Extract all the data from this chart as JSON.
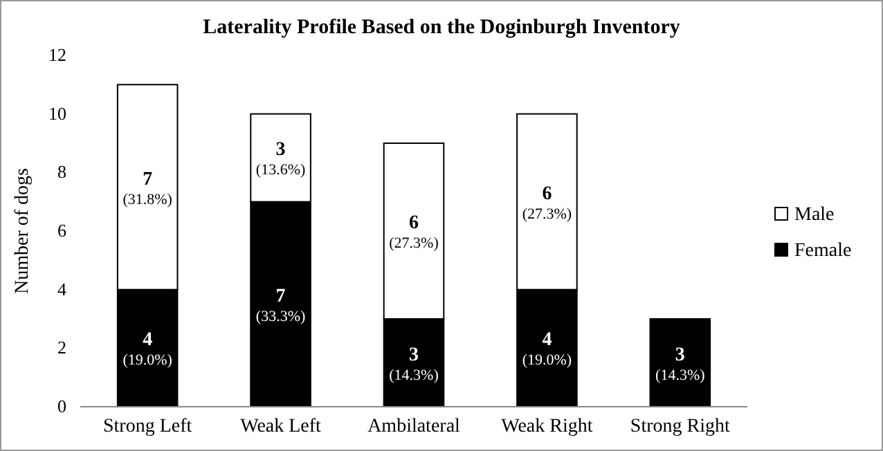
{
  "chart_data": {
    "type": "bar",
    "title": "Laterality Profile Based on the Doginburgh Inventory",
    "ylabel": "Number of dogs",
    "categories": [
      "Strong Left",
      "Weak Left",
      "Ambilateral",
      "Weak Right",
      "Strong Right"
    ],
    "stacked": true,
    "ylim": [
      0,
      12
    ],
    "yticks": [
      0,
      2,
      4,
      6,
      8,
      10,
      12
    ],
    "grid": false,
    "legend": "right",
    "series": [
      {
        "name": "Female",
        "color": "#000000",
        "values": [
          4,
          7,
          3,
          4,
          3
        ],
        "value_labels": [
          "4 (19.0%)",
          "7 (33.3%)",
          "3 (14.3%)",
          "4 (19.0%)",
          "3 (14.3%)"
        ]
      },
      {
        "name": "Male",
        "color": "#ffffff",
        "values": [
          7,
          3,
          6,
          6,
          0
        ],
        "value_labels": [
          "7 (31.8%)",
          "3 (13.6%)",
          "6 (27.3%)",
          "6 (27.3%)",
          null
        ]
      }
    ]
  }
}
